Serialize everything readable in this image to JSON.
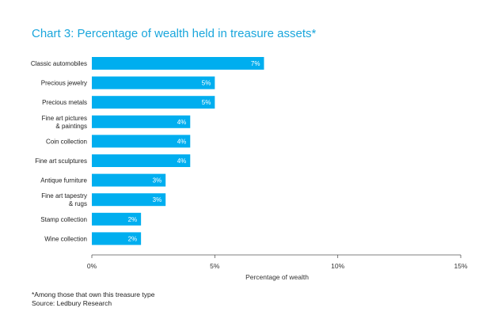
{
  "chart_data": {
    "type": "bar",
    "orientation": "horizontal",
    "title": "Chart 3: Percentage of wealth held in treasure assets*",
    "xlabel": "Percentage of wealth",
    "ylabel": "",
    "xlim": [
      0,
      15
    ],
    "xticks": [
      0,
      5,
      10,
      15
    ],
    "xtick_labels": [
      "0%",
      "5%",
      "10%",
      "15%"
    ],
    "grid": false,
    "bar_color": "#00aeef",
    "categories": [
      [
        "Classic automobiles"
      ],
      [
        "Precious jewelry"
      ],
      [
        "Precious metals"
      ],
      [
        "Fine art pictures",
        "& paintings"
      ],
      [
        "Coin collection"
      ],
      [
        "Fine art sculptures"
      ],
      [
        "Antique furniture"
      ],
      [
        "Fine art tapestry",
        "& rugs"
      ],
      [
        "Stamp collection"
      ],
      [
        "Wine collection"
      ]
    ],
    "values": [
      7,
      5,
      5,
      4,
      4,
      4,
      3,
      3,
      2,
      2
    ],
    "value_labels": [
      "7%",
      "5%",
      "5%",
      "4%",
      "4%",
      "4%",
      "3%",
      "3%",
      "2%",
      "2%"
    ]
  },
  "footnotes": {
    "note": "*Among those that own this treasure type",
    "source": "Source: Ledbury Research"
  }
}
